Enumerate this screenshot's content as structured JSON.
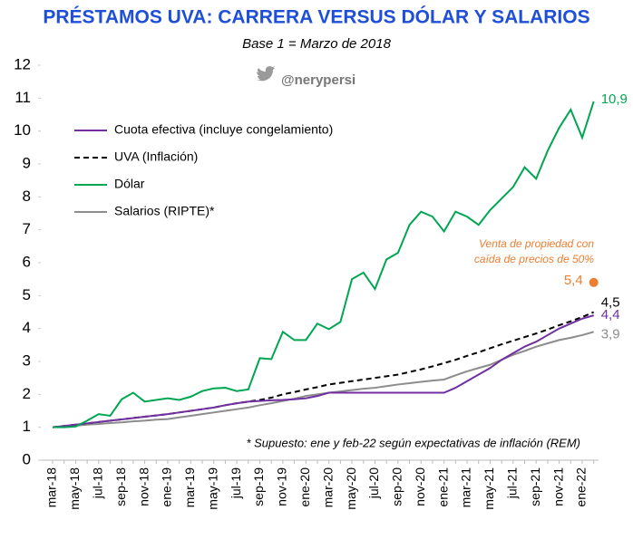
{
  "chart_data": {
    "type": "line",
    "title": "PRÉSTAMOS UVA: CARRERA VERSUS DÓLAR Y SALARIOS",
    "subtitle": "Base 1 = Marzo de 2018",
    "watermark": "@nerypersi",
    "footnote": "* Supuesto: ene y feb-22 según expectativas de inflación (REM)",
    "categories": [
      "mar-18",
      null,
      "may-18",
      null,
      "jul-18",
      null,
      "sep-18",
      null,
      "nov-18",
      null,
      "ene-19",
      null,
      "mar-19",
      null,
      "may-19",
      null,
      "jul-19",
      null,
      "sep-19",
      null,
      "nov-19",
      null,
      "ene-20",
      null,
      "mar-20",
      null,
      "may-20",
      null,
      "jul-20",
      null,
      "sep-20",
      null,
      "nov-20",
      null,
      "ene-21",
      null,
      "mar-21",
      null,
      "may-21",
      null,
      "jul-21",
      null,
      "sep-21",
      null,
      "nov-21",
      null,
      "ene-22",
      null
    ],
    "ylim": [
      0,
      12
    ],
    "yticks": [
      0,
      1,
      2,
      3,
      4,
      5,
      6,
      7,
      8,
      9,
      10,
      11,
      12
    ],
    "grid": false,
    "legend": "top-left",
    "series": [
      {
        "name": "Cuota efectiva (incluye congelamiento)",
        "color": "#7030a0",
        "dash": false,
        "end_label": "4,4",
        "values": [
          1.0,
          1.04,
          1.08,
          1.12,
          1.16,
          1.2,
          1.24,
          1.28,
          1.32,
          1.36,
          1.4,
          1.45,
          1.5,
          1.55,
          1.6,
          1.67,
          1.73,
          1.78,
          1.8,
          1.82,
          1.83,
          1.85,
          1.88,
          1.95,
          2.05,
          2.05,
          2.05,
          2.05,
          2.05,
          2.05,
          2.05,
          2.05,
          2.05,
          2.05,
          2.05,
          2.2,
          2.4,
          2.6,
          2.8,
          3.05,
          3.25,
          3.45,
          3.6,
          3.8,
          4.0,
          4.15,
          4.3,
          4.4
        ]
      },
      {
        "name": "UVA (Inflación)",
        "color": "#000000",
        "dash": true,
        "end_label": "4,5",
        "values": [
          1.0,
          1.04,
          1.08,
          1.12,
          1.16,
          1.2,
          1.24,
          1.28,
          1.32,
          1.36,
          1.4,
          1.45,
          1.5,
          1.55,
          1.6,
          1.67,
          1.73,
          1.78,
          1.83,
          1.9,
          2.0,
          2.07,
          2.15,
          2.22,
          2.3,
          2.35,
          2.4,
          2.45,
          2.5,
          2.55,
          2.6,
          2.68,
          2.76,
          2.85,
          2.95,
          3.05,
          3.17,
          3.28,
          3.4,
          3.52,
          3.63,
          3.74,
          3.85,
          3.97,
          4.1,
          4.22,
          4.35,
          4.5
        ]
      },
      {
        "name": "Dólar",
        "color": "#00a651",
        "dash": false,
        "end_label": "10,9",
        "values": [
          1.0,
          1.0,
          1.02,
          1.2,
          1.4,
          1.35,
          1.85,
          2.05,
          1.78,
          1.83,
          1.88,
          1.83,
          1.93,
          2.1,
          2.18,
          2.2,
          2.1,
          2.15,
          3.1,
          3.07,
          3.9,
          3.65,
          3.65,
          4.15,
          3.98,
          4.2,
          5.5,
          5.7,
          5.2,
          6.1,
          6.3,
          7.15,
          7.55,
          7.4,
          6.95,
          7.55,
          7.4,
          7.15,
          7.6,
          7.95,
          8.3,
          8.9,
          8.55,
          9.4,
          10.1,
          10.65,
          9.8,
          10.9
        ]
      },
      {
        "name": "Salarios (RIPTE)*",
        "color": "#8c8c8c",
        "dash": false,
        "end_label": "3,9",
        "values": [
          1.0,
          1.03,
          1.05,
          1.08,
          1.1,
          1.13,
          1.15,
          1.18,
          1.2,
          1.23,
          1.25,
          1.3,
          1.35,
          1.4,
          1.45,
          1.5,
          1.55,
          1.6,
          1.67,
          1.73,
          1.8,
          1.87,
          1.95,
          2.0,
          2.05,
          2.09,
          2.13,
          2.17,
          2.2,
          2.25,
          2.3,
          2.34,
          2.38,
          2.42,
          2.45,
          2.58,
          2.7,
          2.8,
          2.9,
          3.05,
          3.2,
          3.32,
          3.45,
          3.55,
          3.65,
          3.72,
          3.8,
          3.9
        ]
      }
    ],
    "highlight": {
      "value": 5.4,
      "label": "5,4",
      "color": "#ed7d31",
      "note_lines": [
        "Venta de propiedad con",
        "caída de precios de 50%"
      ]
    }
  }
}
